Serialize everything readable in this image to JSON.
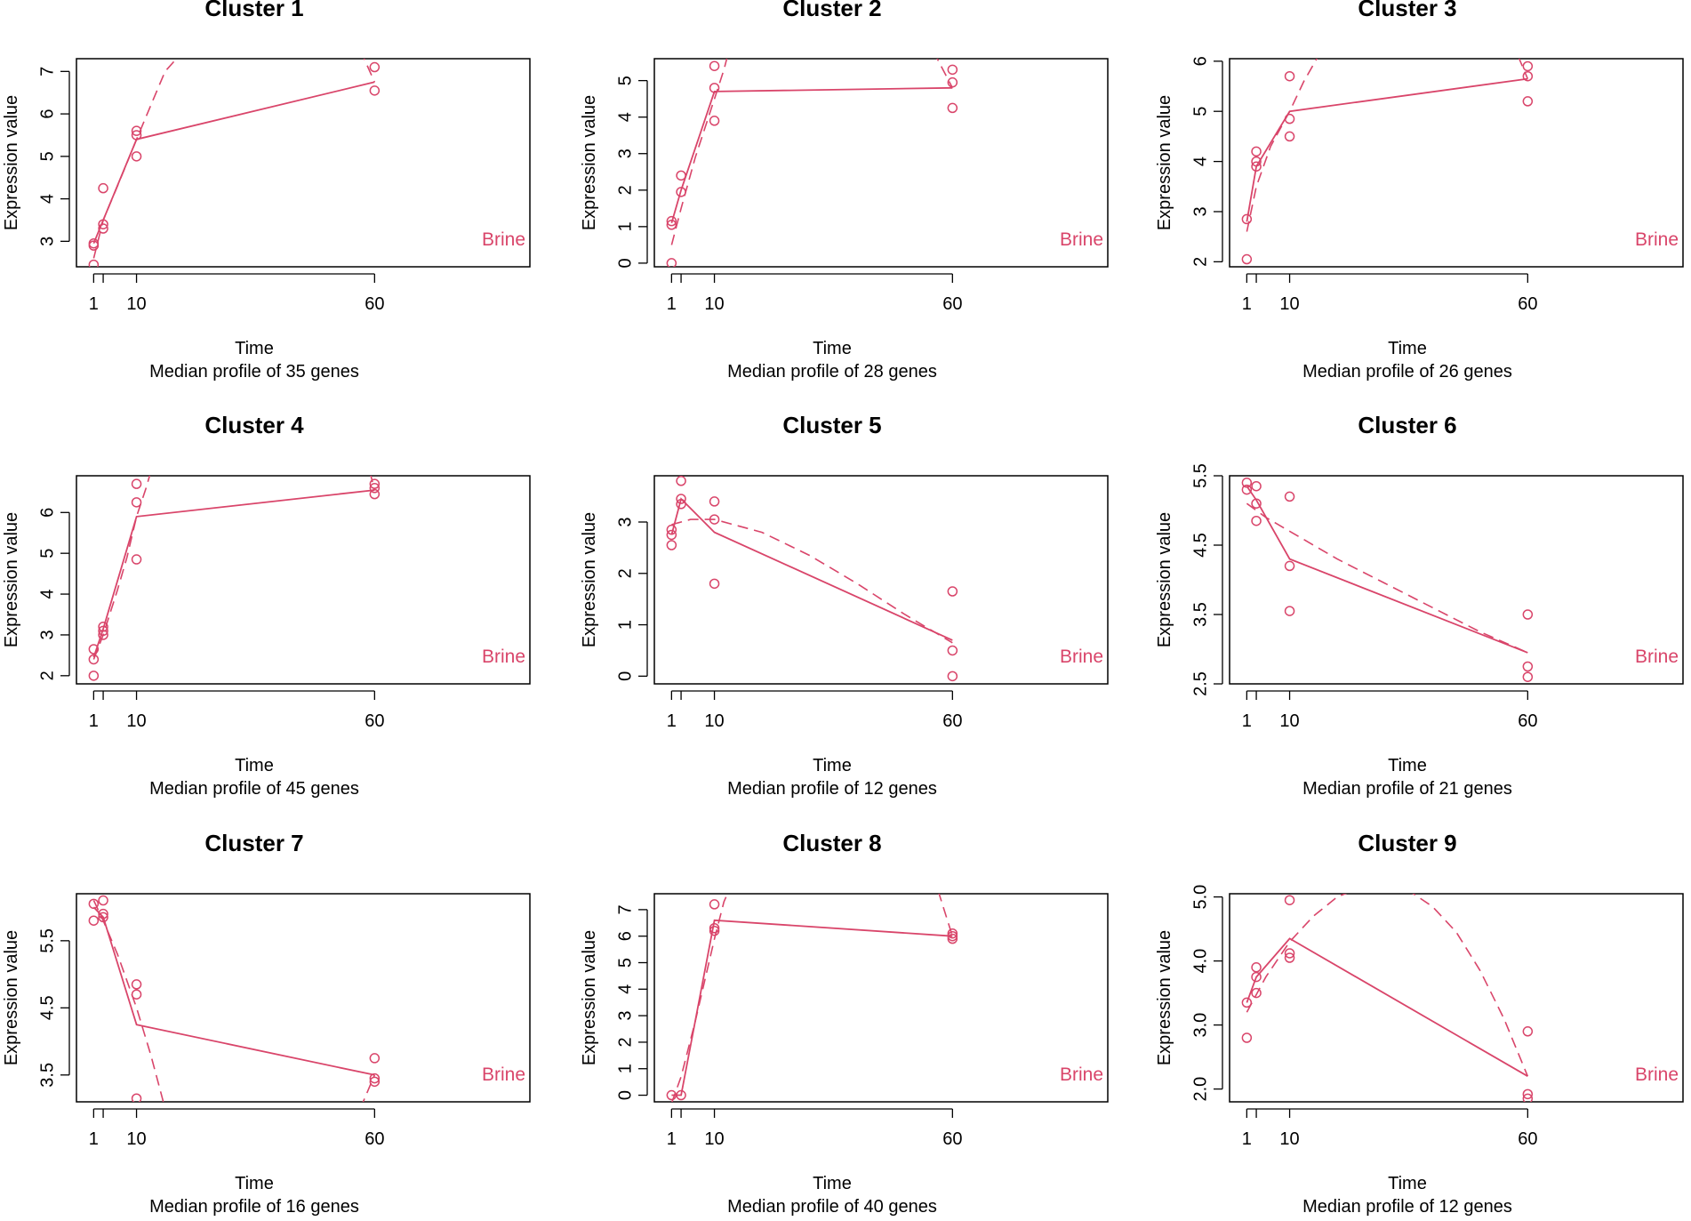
{
  "figure": {
    "series_color": "#D9456A"
  },
  "chart_data": [
    {
      "type": "line",
      "title": "Cluster 1",
      "xlabel": "Time",
      "ylabel": "Expression value",
      "subtitle": "Median profile of 35 genes",
      "legend": "Brine",
      "legend_position": "bottom-right",
      "x_ticks": [
        1,
        10,
        60
      ],
      "xlim": [
        0,
        90
      ],
      "y_ticks": [
        "3",
        "4",
        "5",
        "6",
        "7"
      ],
      "ylim": [
        2.4,
        7.3
      ],
      "points": [
        [
          1,
          2.95
        ],
        [
          1,
          2.9
        ],
        [
          1,
          2.45
        ],
        [
          3,
          4.25
        ],
        [
          3,
          3.4
        ],
        [
          3,
          3.3
        ],
        [
          10,
          5.6
        ],
        [
          10,
          5.5
        ],
        [
          10,
          5.0
        ],
        [
          60,
          7.1
        ],
        [
          60,
          6.55
        ]
      ],
      "median": [
        [
          1,
          2.95
        ],
        [
          3,
          3.5
        ],
        [
          10,
          5.4
        ],
        [
          60,
          6.75
        ]
      ],
      "fit": [
        [
          1,
          2.6
        ],
        [
          3,
          3.5
        ],
        [
          6,
          4.3
        ],
        [
          10,
          5.4
        ],
        [
          13,
          6.2
        ],
        [
          16,
          7.0
        ],
        [
          20,
          7.5
        ]
      ],
      "fit_end": [
        [
          57,
          7.5
        ],
        [
          60,
          6.75
        ]
      ]
    },
    {
      "type": "line",
      "title": "Cluster 2",
      "xlabel": "Time",
      "ylabel": "Expression value",
      "subtitle": "Median profile of 28 genes",
      "legend": "Brine",
      "legend_position": "bottom-right",
      "x_ticks": [
        1,
        10,
        60
      ],
      "xlim": [
        0,
        90
      ],
      "y_ticks": [
        "0",
        "1",
        "2",
        "3",
        "4",
        "5"
      ],
      "ylim": [
        -0.1,
        5.6
      ],
      "points": [
        [
          1,
          1.15
        ],
        [
          1,
          1.05
        ],
        [
          1,
          0.0
        ],
        [
          3,
          2.4
        ],
        [
          3,
          1.95
        ],
        [
          10,
          5.4
        ],
        [
          10,
          4.8
        ],
        [
          10,
          3.9
        ],
        [
          60,
          5.3
        ],
        [
          60,
          4.95
        ],
        [
          60,
          4.25
        ]
      ],
      "median": [
        [
          1,
          1.1
        ],
        [
          3,
          2.0
        ],
        [
          10,
          4.7
        ],
        [
          60,
          4.8
        ]
      ],
      "fit": [
        [
          1,
          0.5
        ],
        [
          3,
          1.5
        ],
        [
          6,
          2.9
        ],
        [
          10,
          4.5
        ],
        [
          12,
          5.3
        ],
        [
          13,
          5.8
        ]
      ],
      "fit_end": [
        [
          56,
          5.8
        ],
        [
          60,
          4.8
        ]
      ]
    },
    {
      "type": "line",
      "title": "Cluster 3",
      "xlabel": "Time",
      "ylabel": "Expression value",
      "subtitle": "Median profile of 26 genes",
      "legend": "Brine",
      "legend_position": "bottom-right",
      "x_ticks": [
        1,
        10,
        60
      ],
      "xlim": [
        0,
        90
      ],
      "y_ticks": [
        "2",
        "3",
        "4",
        "5",
        "6"
      ],
      "ylim": [
        1.9,
        6.05
      ],
      "points": [
        [
          1,
          2.85
        ],
        [
          1,
          2.05
        ],
        [
          3,
          4.2
        ],
        [
          3,
          4.0
        ],
        [
          3,
          3.9
        ],
        [
          10,
          5.7
        ],
        [
          10,
          4.85
        ],
        [
          10,
          4.5
        ],
        [
          60,
          5.9
        ],
        [
          60,
          5.7
        ],
        [
          60,
          5.2
        ]
      ],
      "median": [
        [
          1,
          2.8
        ],
        [
          3,
          3.9
        ],
        [
          10,
          5.0
        ],
        [
          60,
          5.65
        ]
      ],
      "fit": [
        [
          1,
          2.6
        ],
        [
          3,
          3.5
        ],
        [
          6,
          4.3
        ],
        [
          10,
          5.0
        ],
        [
          13,
          5.6
        ],
        [
          16,
          6.1
        ]
      ],
      "fit_end": [
        [
          58,
          6.1
        ],
        [
          60,
          5.65
        ]
      ]
    },
    {
      "type": "line",
      "title": "Cluster 4",
      "xlabel": "Time",
      "ylabel": "Expression value",
      "subtitle": "Median profile of 45 genes",
      "legend": "Brine",
      "legend_position": "bottom-right",
      "x_ticks": [
        1,
        10,
        60
      ],
      "xlim": [
        0,
        90
      ],
      "y_ticks": [
        "2",
        "3",
        "4",
        "5",
        "6"
      ],
      "ylim": [
        1.8,
        6.9
      ],
      "points": [
        [
          1,
          2.65
        ],
        [
          1,
          2.4
        ],
        [
          1,
          2.0
        ],
        [
          3,
          3.2
        ],
        [
          3,
          3.1
        ],
        [
          3,
          3.0
        ],
        [
          10,
          6.7
        ],
        [
          10,
          6.25
        ],
        [
          10,
          4.85
        ],
        [
          60,
          6.7
        ],
        [
          60,
          6.6
        ],
        [
          60,
          6.45
        ]
      ],
      "median": [
        [
          1,
          2.45
        ],
        [
          3,
          3.15
        ],
        [
          10,
          5.9
        ],
        [
          60,
          6.55
        ]
      ],
      "fit": [
        [
          1,
          2.4
        ],
        [
          3,
          3.0
        ],
        [
          6,
          4.1
        ],
        [
          8,
          4.9
        ],
        [
          10,
          5.9
        ],
        [
          12,
          6.6
        ],
        [
          13,
          7.0
        ]
      ],
      "fit_end": [
        [
          59,
          7.0
        ],
        [
          60,
          6.55
        ]
      ]
    },
    {
      "type": "line",
      "title": "Cluster 5",
      "xlabel": "Time",
      "ylabel": "Expression value",
      "subtitle": "Median profile of 12 genes",
      "legend": "Brine",
      "legend_position": "bottom-right",
      "x_ticks": [
        1,
        10,
        60
      ],
      "xlim": [
        0,
        90
      ],
      "y_ticks": [
        "0",
        "1",
        "2",
        "3"
      ],
      "ylim": [
        -0.15,
        3.9
      ],
      "points": [
        [
          1,
          2.85
        ],
        [
          1,
          2.75
        ],
        [
          1,
          2.55
        ],
        [
          3,
          3.8
        ],
        [
          3,
          3.45
        ],
        [
          3,
          3.35
        ],
        [
          10,
          3.4
        ],
        [
          10,
          3.05
        ],
        [
          10,
          1.8
        ],
        [
          60,
          1.65
        ],
        [
          60,
          0.5
        ],
        [
          60,
          0.0
        ]
      ],
      "median": [
        [
          1,
          2.75
        ],
        [
          3,
          3.45
        ],
        [
          10,
          2.8
        ],
        [
          60,
          0.7
        ]
      ],
      "fit": [
        [
          1,
          2.95
        ],
        [
          5,
          3.05
        ],
        [
          10,
          3.05
        ],
        [
          20,
          2.8
        ],
        [
          30,
          2.35
        ],
        [
          40,
          1.8
        ],
        [
          50,
          1.2
        ],
        [
          60,
          0.65
        ]
      ]
    },
    {
      "type": "line",
      "title": "Cluster 6",
      "xlabel": "Time",
      "ylabel": "Expression value",
      "subtitle": "Median profile of 21 genes",
      "legend": "Brine",
      "legend_position": "bottom-right",
      "x_ticks": [
        1,
        10,
        60
      ],
      "xlim": [
        0,
        90
      ],
      "y_ticks": [
        "2.5",
        "3.5",
        "4.5",
        "5.5"
      ],
      "ylim": [
        2.5,
        5.5
      ],
      "points": [
        [
          1,
          5.4
        ],
        [
          1,
          5.3
        ],
        [
          3,
          5.35
        ],
        [
          3,
          5.1
        ],
        [
          3,
          4.85
        ],
        [
          10,
          5.2
        ],
        [
          10,
          4.2
        ],
        [
          10,
          3.55
        ],
        [
          60,
          3.5
        ],
        [
          60,
          2.75
        ],
        [
          60,
          2.6
        ]
      ],
      "median": [
        [
          1,
          5.35
        ],
        [
          3,
          5.15
        ],
        [
          10,
          4.3
        ],
        [
          60,
          2.95
        ]
      ],
      "fit": [
        [
          1,
          5.1
        ],
        [
          5,
          4.9
        ],
        [
          10,
          4.7
        ],
        [
          20,
          4.3
        ],
        [
          30,
          3.95
        ],
        [
          40,
          3.6
        ],
        [
          50,
          3.25
        ],
        [
          60,
          2.95
        ]
      ]
    },
    {
      "type": "line",
      "title": "Cluster 7",
      "xlabel": "Time",
      "ylabel": "Expression value",
      "subtitle": "Median profile of 16 genes",
      "legend": "Brine",
      "legend_position": "bottom-right",
      "x_ticks": [
        1,
        10,
        60
      ],
      "xlim": [
        0,
        90
      ],
      "y_ticks": [
        "3.5",
        "4.5",
        "5.5"
      ],
      "ylim": [
        3.1,
        6.2
      ],
      "points": [
        [
          1,
          6.05
        ],
        [
          1,
          5.8
        ],
        [
          3,
          6.1
        ],
        [
          3,
          5.9
        ],
        [
          3,
          5.85
        ],
        [
          10,
          4.85
        ],
        [
          10,
          4.7
        ],
        [
          10,
          3.15
        ],
        [
          60,
          3.75
        ],
        [
          60,
          3.45
        ],
        [
          60,
          3.4
        ]
      ],
      "median": [
        [
          1,
          6.0
        ],
        [
          3,
          5.85
        ],
        [
          10,
          4.25
        ],
        [
          60,
          3.5
        ]
      ],
      "fit": [
        [
          1,
          6.1
        ],
        [
          3,
          5.8
        ],
        [
          6,
          5.3
        ],
        [
          10,
          4.5
        ],
        [
          13,
          3.8
        ],
        [
          16,
          3.0
        ]
      ],
      "fit_end": [
        [
          57,
          3.0
        ],
        [
          60,
          3.5
        ]
      ]
    },
    {
      "type": "line",
      "title": "Cluster 8",
      "xlabel": "Time",
      "ylabel": "Expression value",
      "subtitle": "Median profile of 40 genes",
      "legend": "Brine",
      "legend_position": "bottom-right",
      "x_ticks": [
        1,
        10,
        60
      ],
      "xlim": [
        0,
        90
      ],
      "y_ticks": [
        "0",
        "1",
        "2",
        "3",
        "4",
        "5",
        "6",
        "7"
      ],
      "ylim": [
        -0.25,
        7.6
      ],
      "points": [
        [
          1,
          0.0
        ],
        [
          3,
          0.0
        ],
        [
          10,
          7.2
        ],
        [
          10,
          6.3
        ],
        [
          10,
          6.2
        ],
        [
          60,
          6.1
        ],
        [
          60,
          6.0
        ],
        [
          60,
          5.9
        ]
      ],
      "median": [
        [
          1,
          0.0
        ],
        [
          3,
          0.0
        ],
        [
          10,
          6.6
        ],
        [
          60,
          6.0
        ]
      ],
      "fit": [
        [
          1,
          -0.3
        ],
        [
          3,
          0.7
        ],
        [
          6,
          2.8
        ],
        [
          10,
          5.9
        ],
        [
          12,
          7.3
        ],
        [
          13,
          7.7
        ]
      ],
      "fit_end": [
        [
          57,
          7.7
        ],
        [
          60,
          6.0
        ]
      ]
    },
    {
      "type": "line",
      "title": "Cluster 9",
      "xlabel": "Time",
      "ylabel": "Expression value",
      "subtitle": "Median profile of 12 genes",
      "legend": "Brine",
      "legend_position": "bottom-right",
      "x_ticks": [
        1,
        10,
        60
      ],
      "xlim": [
        0,
        90
      ],
      "y_ticks": [
        "2.0",
        "3.0",
        "4.0",
        "5.0"
      ],
      "ylim": [
        1.8,
        5.05
      ],
      "points": [
        [
          1,
          3.35
        ],
        [
          1,
          2.8
        ],
        [
          3,
          3.9
        ],
        [
          3,
          3.75
        ],
        [
          3,
          3.5
        ],
        [
          10,
          4.95
        ],
        [
          10,
          4.12
        ],
        [
          10,
          4.05
        ],
        [
          60,
          2.9
        ],
        [
          60,
          1.92
        ],
        [
          60,
          1.85
        ]
      ],
      "median": [
        [
          1,
          3.35
        ],
        [
          3,
          3.75
        ],
        [
          10,
          4.35
        ],
        [
          60,
          2.2
        ]
      ],
      "fit": [
        [
          1,
          3.2
        ],
        [
          5,
          3.75
        ],
        [
          10,
          4.3
        ],
        [
          15,
          4.7
        ],
        [
          20,
          5.0
        ],
        [
          25,
          5.15
        ],
        [
          30,
          5.2
        ],
        [
          35,
          5.1
        ],
        [
          40,
          4.85
        ],
        [
          45,
          4.45
        ],
        [
          50,
          3.85
        ],
        [
          55,
          3.1
        ],
        [
          60,
          2.2
        ]
      ]
    }
  ]
}
